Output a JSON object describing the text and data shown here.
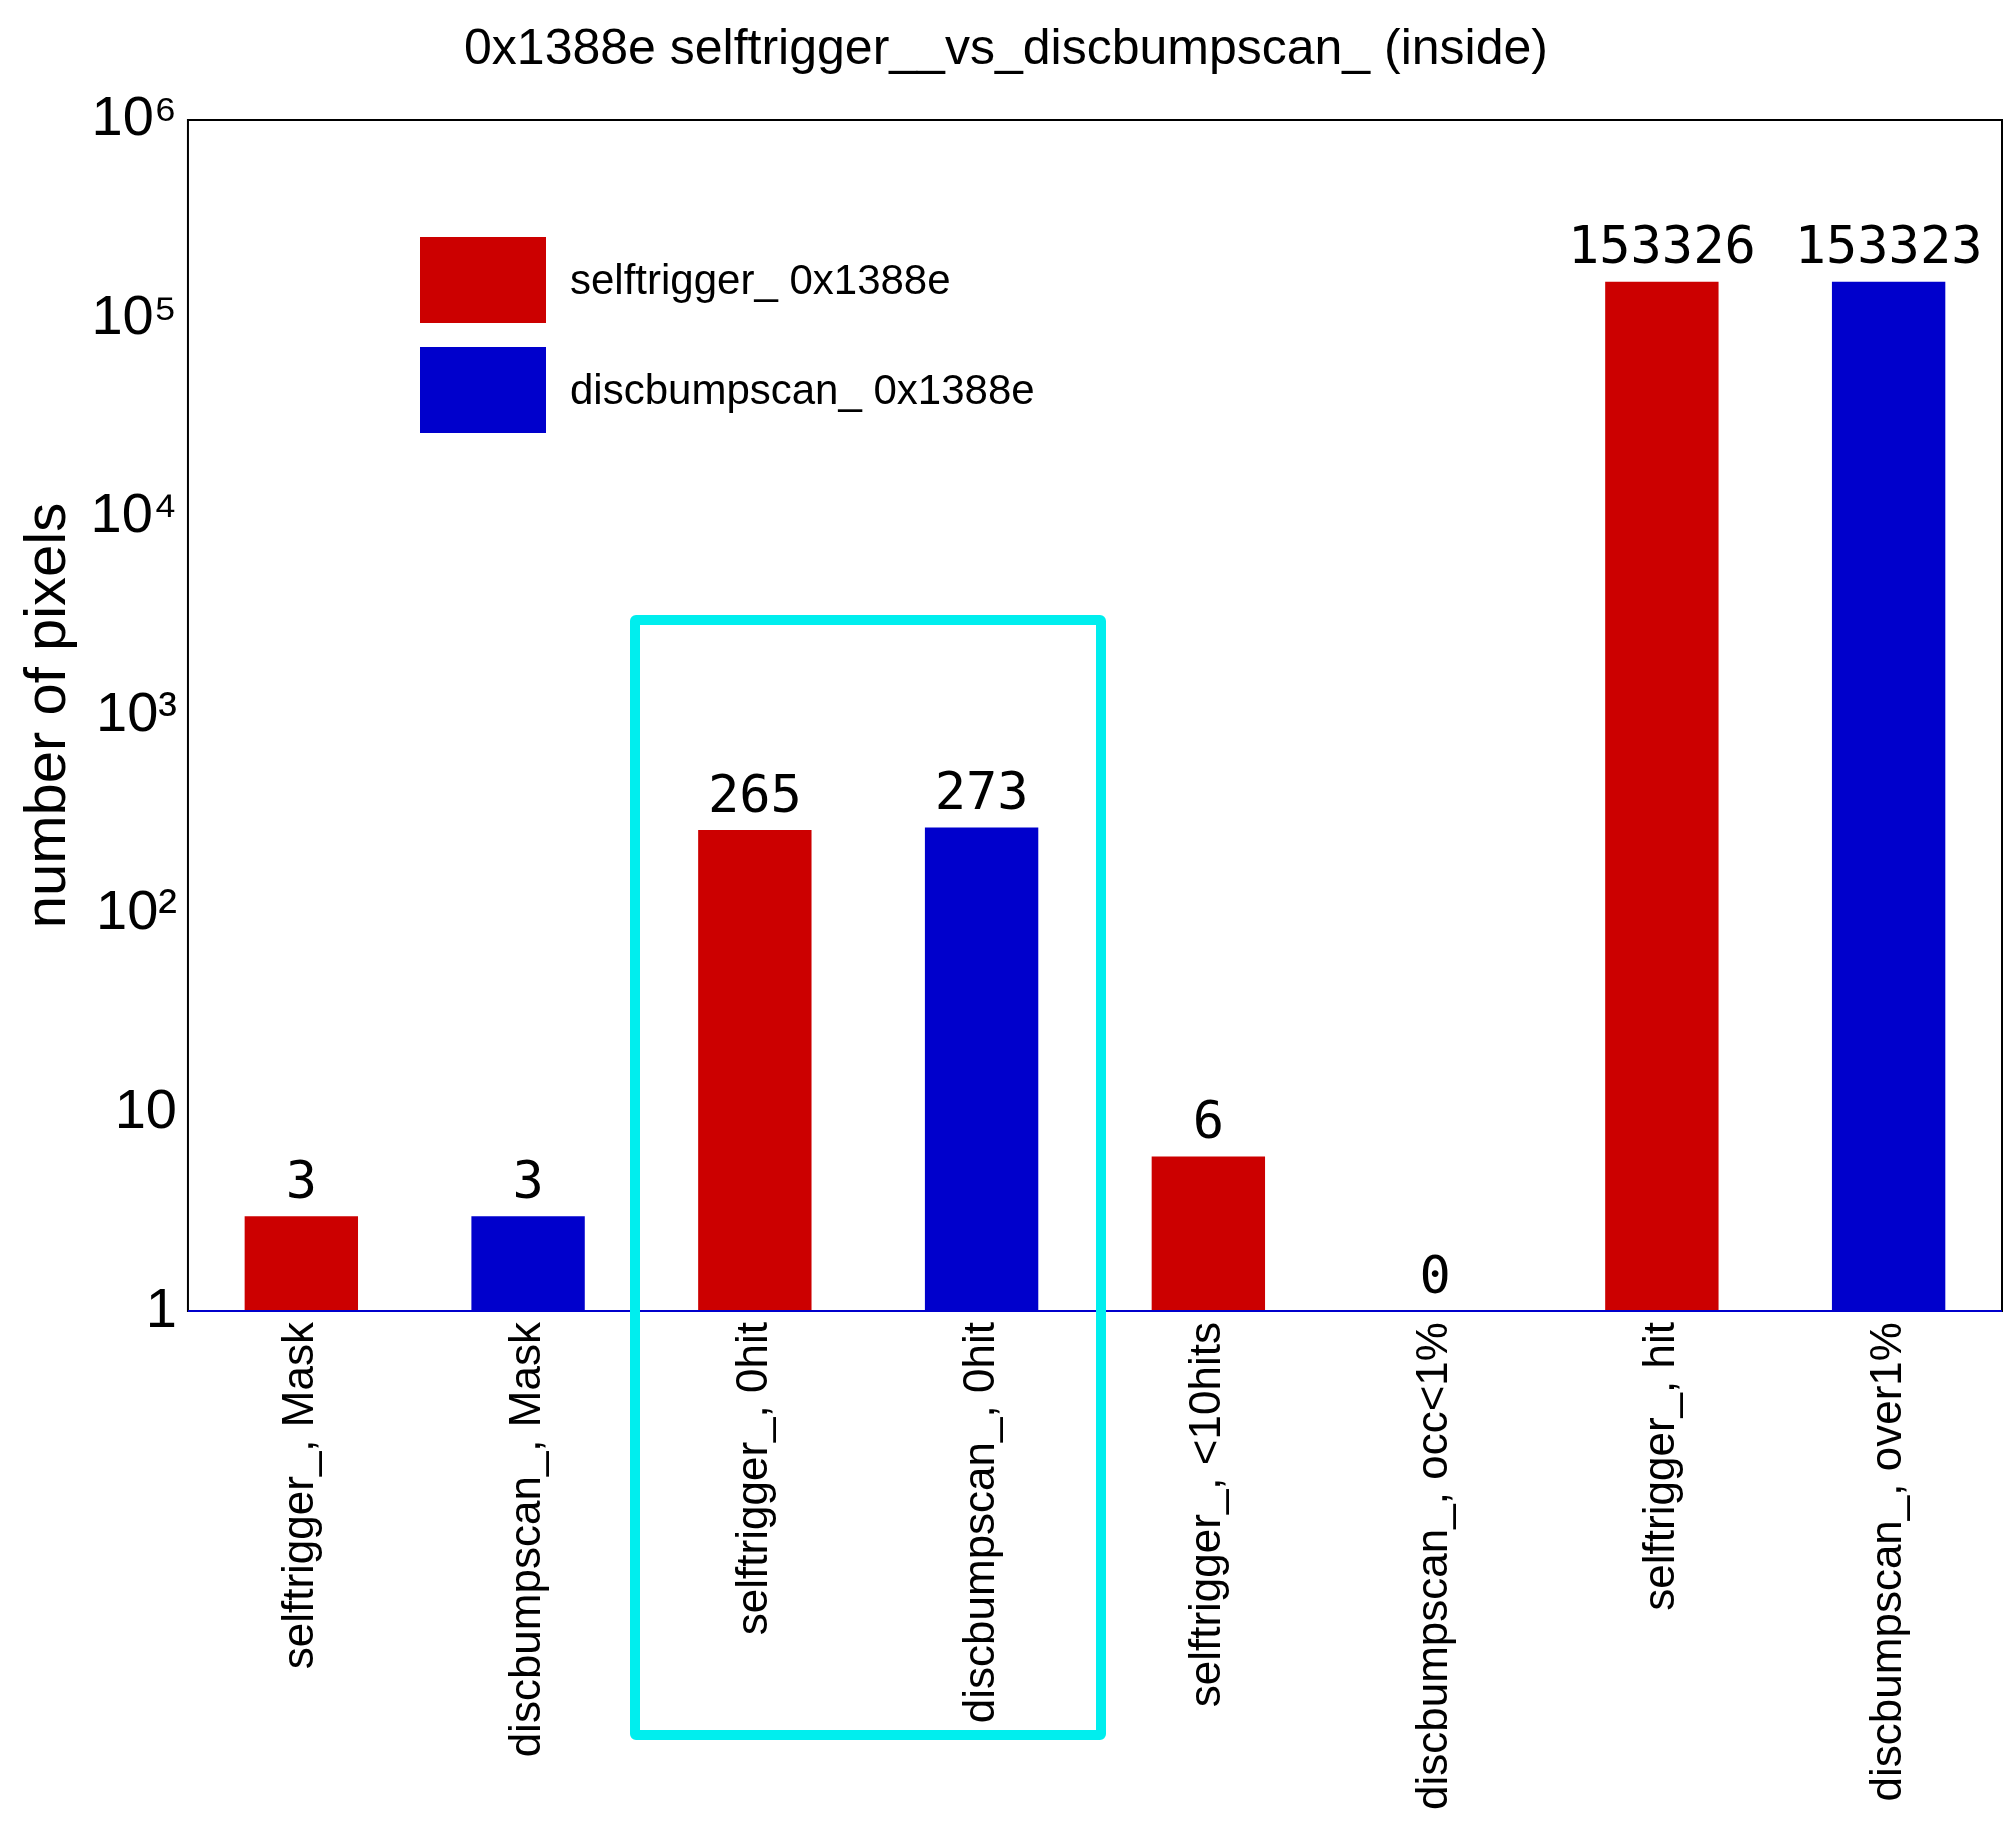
{
  "chart_data": {
    "type": "bar",
    "title": "0x1388e selftrigger__vs_discbumpscan_ (inside)",
    "ylabel": "number of pixels",
    "categories": [
      "selftrigger_, Mask",
      "discbumpscan_, Mask",
      "selftrigger_, 0hit",
      "discbumpscan_, 0hit",
      "selftrigger_, <10hits",
      "discbumpscan_, occ<1%",
      "selftrigger_, hit",
      "discbumpscan_, over1%"
    ],
    "series": [
      {
        "name": "selftrigger_ 0x1388e",
        "color": "#cc0000",
        "values": [
          3,
          null,
          265,
          null,
          6,
          null,
          153326,
          null
        ]
      },
      {
        "name": "discbumpscan_ 0x1388e",
        "color": "#0000cc",
        "values": [
          null,
          3,
          null,
          273,
          null,
          null,
          null,
          153323
        ]
      }
    ],
    "annotations": [
      "0"
    ],
    "log": "y",
    "ylim": [
      1,
      1000000
    ],
    "yticks": [
      1,
      10,
      {
        "value": 100,
        "label": "10²"
      },
      {
        "value": 1000,
        "label": "10³"
      },
      {
        "value": 10000,
        "label": "10⁴"
      },
      {
        "value": 100000,
        "label": "10⁵"
      },
      {
        "value": 1000000,
        "label": "10⁶"
      }
    ],
    "grid": false,
    "legend": "top left",
    "data_labels": true
  }
}
